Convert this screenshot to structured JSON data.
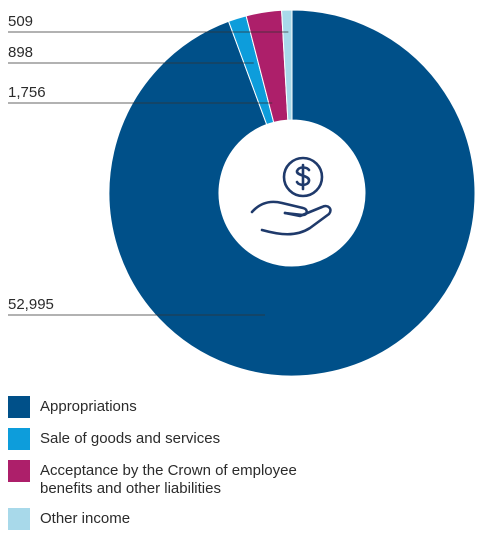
{
  "chart_data": {
    "type": "pie",
    "donut": true,
    "categories": [
      "Appropriations",
      "Sale of goods and services",
      "Acceptance by the Crown of employee benefits and other liabilities",
      "Other income"
    ],
    "values": [
      52995,
      898,
      1756,
      509
    ],
    "value_labels": [
      "52,995",
      "898",
      "1,756",
      "509"
    ],
    "colors": [
      "#005089",
      "#0d9ddb",
      "#ad1f6a",
      "#a8d9ea"
    ],
    "legend_position": "bottom-left",
    "center_icon": "hand-holding-dollar-icon"
  }
}
